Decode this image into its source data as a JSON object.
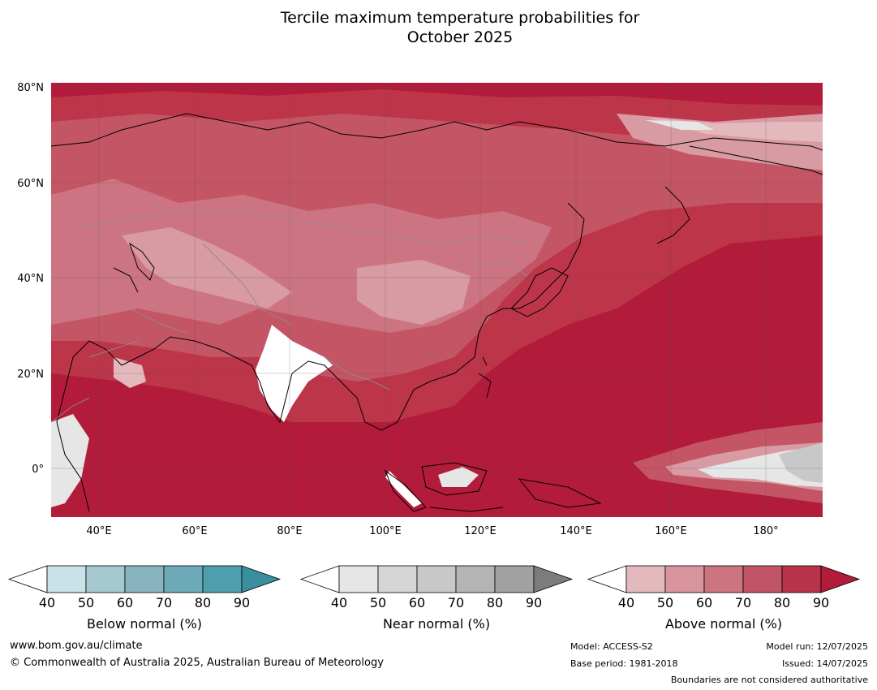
{
  "title": {
    "line1": "Tercile maximum temperature probabilities for",
    "line2": "October 2025"
  },
  "map": {
    "lon_ticks": [
      "40°E",
      "60°E",
      "80°E",
      "100°E",
      "120°E",
      "140°E",
      "160°E",
      "180°"
    ],
    "lat_ticks": [
      "80°N",
      "60°N",
      "40°N",
      "20°N",
      "0°"
    ],
    "colors": {
      "above_90": "#b31b3a",
      "above_80": "#bd3549",
      "above_70": "#c45565",
      "above_60": "#cd7482",
      "above_50": "#d89aa3",
      "above_40": "#e4b9be",
      "near_40": "#e6e6e6",
      "near_50": "#d6d6d6",
      "near_60": "#c8c8c8",
      "land_outline": "#000000",
      "border": "#8c8c8c",
      "below_40": "#c9e2e8"
    }
  },
  "colorbars": [
    {
      "label": "Below normal (%)",
      "ticks": [
        "40",
        "50",
        "60",
        "70",
        "80",
        "90"
      ],
      "colors": [
        "#c9e2e8",
        "#a6c8cf",
        "#88b4bf",
        "#6caab7",
        "#4e9fae",
        "#3a8f9f"
      ]
    },
    {
      "label": "Near normal (%)",
      "ticks": [
        "40",
        "50",
        "60",
        "70",
        "80",
        "90"
      ],
      "colors": [
        "#e6e6e6",
        "#d6d6d6",
        "#c8c8c8",
        "#b4b4b4",
        "#a1a1a1",
        "#7c7c7c"
      ]
    },
    {
      "label": "Above normal (%)",
      "ticks": [
        "40",
        "50",
        "60",
        "70",
        "80",
        "90"
      ],
      "colors": [
        "#e4b9be",
        "#d8959d",
        "#cc7480",
        "#c25565",
        "#b8334a",
        "#b31b3a"
      ]
    }
  ],
  "footer": {
    "website": "www.bom.gov.au/climate",
    "copyright": "© Commonwealth of Australia 2025, Australian Bureau of Meteorology",
    "model": "Model: ACCESS-S2",
    "base_period": "Base period: 1981-2018",
    "model_run": "Model run: 12/07/2025",
    "issued": "Issued: 14/07/2025",
    "disclaimer": "Boundaries are not considered authoritative"
  }
}
